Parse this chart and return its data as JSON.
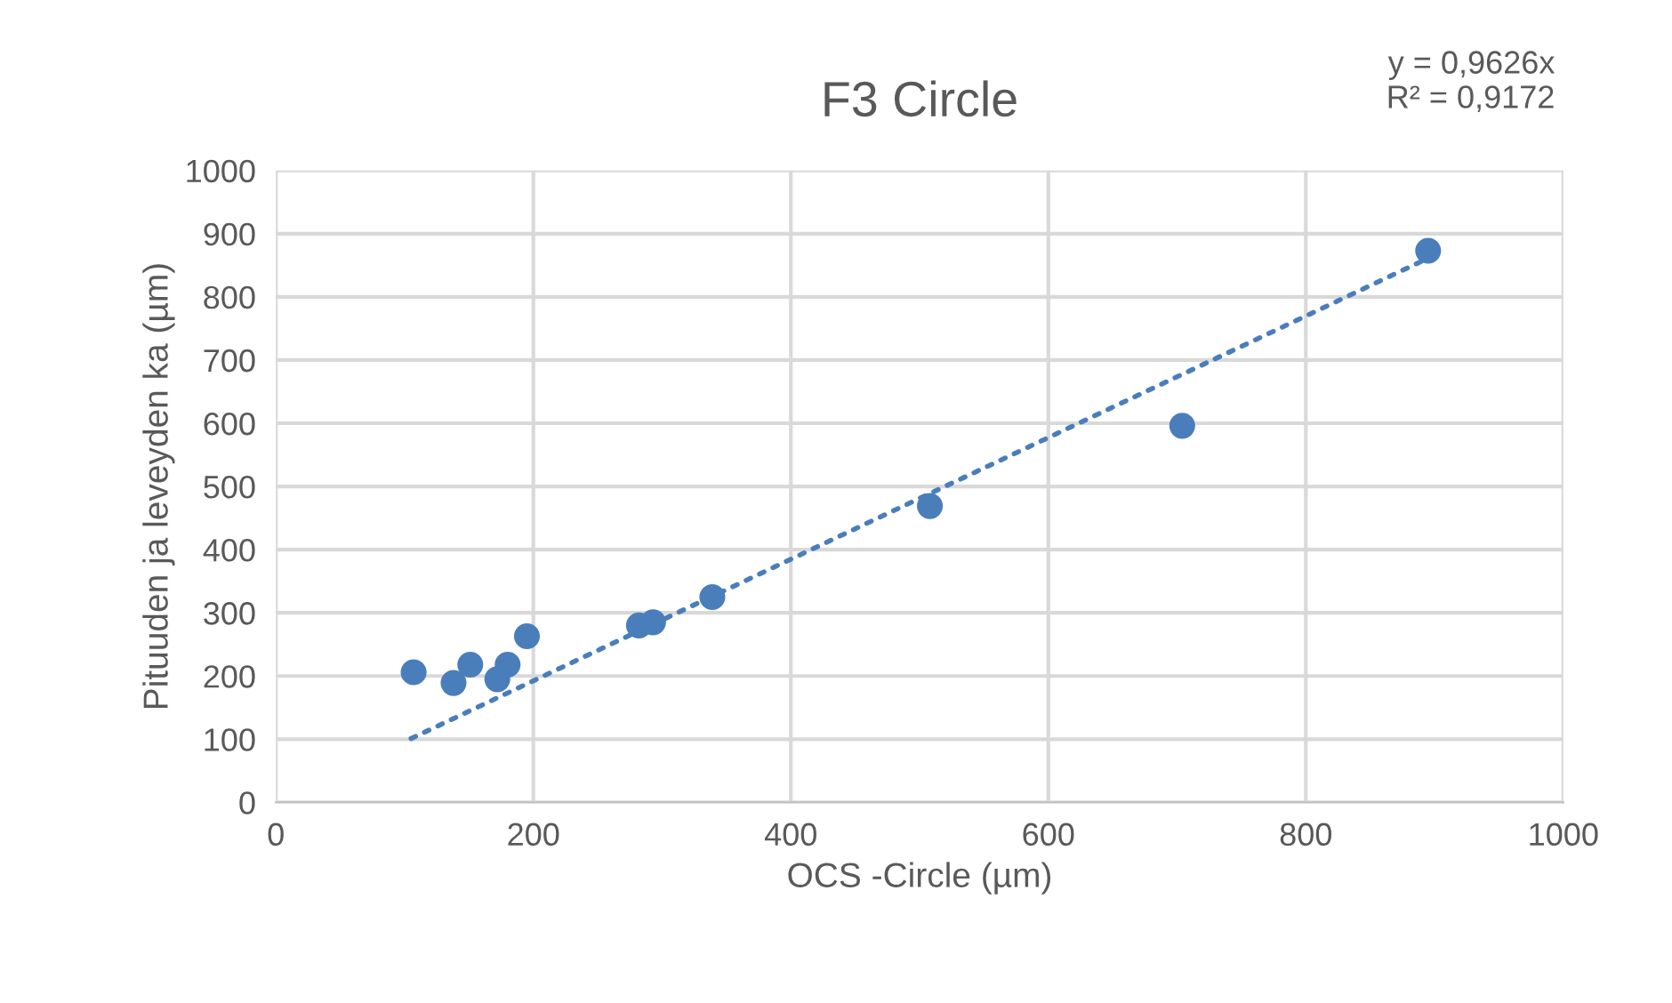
{
  "chart_data": {
    "type": "scatter",
    "title": "F3 Circle",
    "xlabel": "OCS -Circle (µm)",
    "ylabel": "Pituuden ja leveyden ka (µm)",
    "xlim": [
      0,
      1000
    ],
    "ylim": [
      0,
      1000
    ],
    "xticks": [
      0,
      200,
      400,
      600,
      800,
      1000
    ],
    "yticks": [
      0,
      100,
      200,
      300,
      400,
      500,
      600,
      700,
      800,
      900,
      1000
    ],
    "grid": true,
    "series": [
      {
        "marker": "circle",
        "color": "#4a7ebb",
        "x": [
          107,
          138,
          151,
          172,
          180,
          195,
          282,
          293,
          339,
          508,
          704,
          895
        ],
        "values": [
          206,
          189,
          218,
          195,
          218,
          263,
          280,
          285,
          325,
          469,
          596,
          873
        ]
      },
      {
        "type": "line",
        "marker": "none",
        "color": "#4a7ebb",
        "line_style": "dotted",
        "x": [
          105,
          900
        ],
        "values": [
          101,
          866
        ]
      }
    ],
    "annotations": [
      "y = 0,9626x\nR² = 0,9172"
    ]
  }
}
